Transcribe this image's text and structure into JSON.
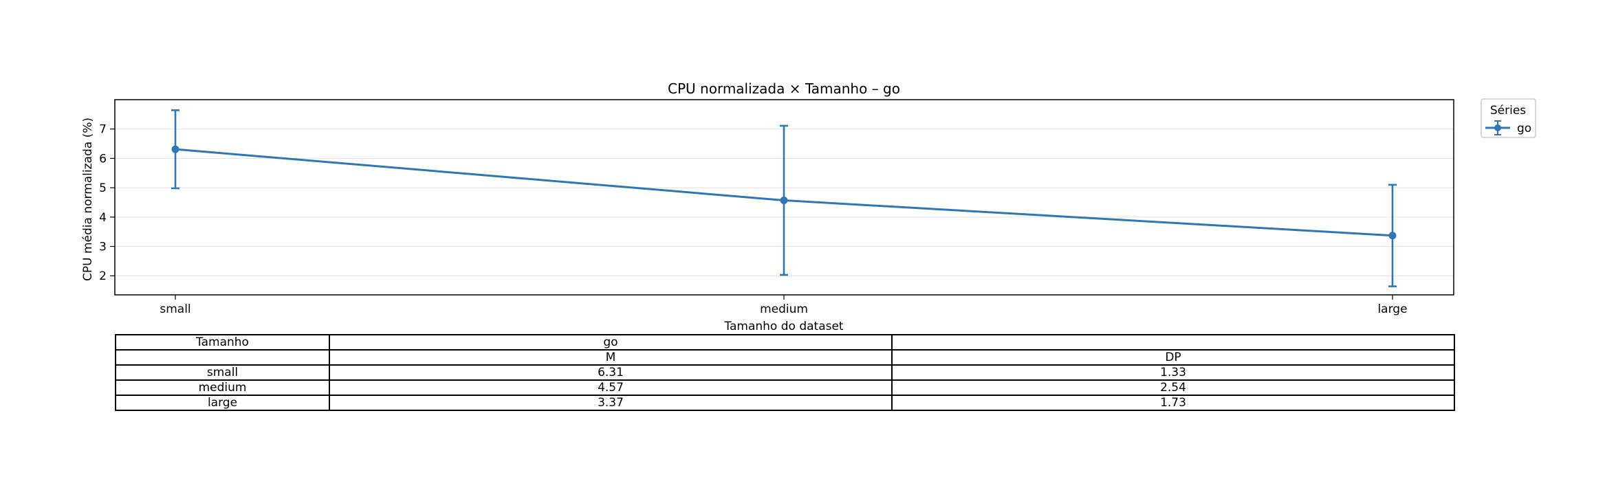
{
  "chart_data": {
    "type": "line",
    "title": "CPU normalizada × Tamanho – go",
    "xlabel": "Tamanho do dataset",
    "ylabel": "CPU média normalizada (%)",
    "categories": [
      "small",
      "medium",
      "large"
    ],
    "ylim": [
      1.35,
      8.0
    ],
    "yticks": [
      2,
      3,
      4,
      5,
      6,
      7
    ],
    "grid": "y",
    "legend": {
      "title": "Séries",
      "placement": "outside-top-right"
    },
    "series": [
      {
        "name": "go",
        "color": "#2f77b4",
        "values": [
          6.31,
          4.57,
          3.37
        ],
        "errors": [
          1.33,
          2.54,
          1.73
        ]
      }
    ]
  },
  "table": {
    "header1": [
      "Tamanho",
      "go",
      ""
    ],
    "header2": [
      "",
      "M",
      "DP"
    ],
    "rows": [
      [
        "small",
        "6.31",
        "1.33"
      ],
      [
        "medium",
        "4.57",
        "2.54"
      ],
      [
        "large",
        "3.37",
        "1.73"
      ]
    ]
  }
}
